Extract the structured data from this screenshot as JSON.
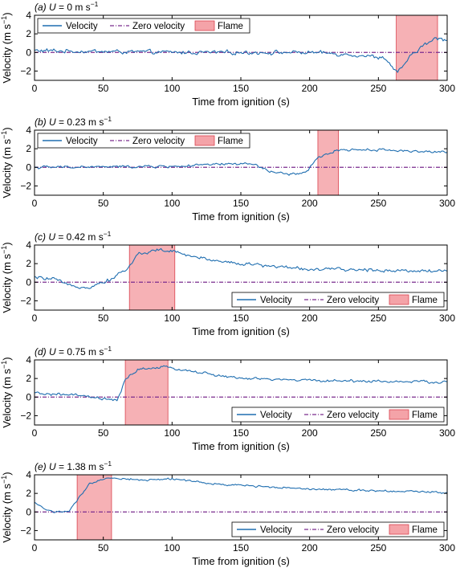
{
  "chart_data": [
    {
      "type": "line",
      "panel": "a",
      "title_prefix": "(a) ",
      "title_var": "U",
      "title_eq": " = 0 m s",
      "title_sup": "−1",
      "xlabel": "Time from ignition (s)",
      "ylabel": "Velocity (m s",
      "ylabel_sup": "−1",
      "ylabel_close": ")",
      "xlim": [
        0,
        300
      ],
      "ylim": [
        -3,
        4
      ],
      "xticks": [
        0,
        50,
        100,
        150,
        200,
        250,
        300
      ],
      "yticks": [
        -2,
        0,
        2,
        4
      ],
      "legend_position": "top-left",
      "flame_span": [
        263,
        293
      ],
      "velocity_profile": [
        [
          0,
          0.2
        ],
        [
          100,
          0.0
        ],
        [
          200,
          0.0
        ],
        [
          230,
          -0.2
        ],
        [
          255,
          -0.6
        ],
        [
          264,
          -2.3
        ],
        [
          270,
          -1.0
        ],
        [
          280,
          0.5
        ],
        [
          292,
          1.5
        ],
        [
          300,
          1.4
        ]
      ],
      "noise_amplitude": 0.3,
      "series": [
        {
          "name": "Velocity",
          "color": "#1f6eb0"
        },
        {
          "name": "Zero velocity",
          "color": "#7b2c8e",
          "value": 0
        },
        {
          "name": "Flame",
          "color": "#f4a3a8"
        }
      ]
    },
    {
      "type": "line",
      "panel": "b",
      "title_prefix": "(b) ",
      "title_var": "U",
      "title_eq": " = 0.23 m s",
      "title_sup": "−1",
      "xlabel": "Time from ignition (s)",
      "ylabel": "Velocity (m s",
      "ylabel_sup": "−1",
      "ylabel_close": ")",
      "xlim": [
        0,
        300
      ],
      "ylim": [
        -3,
        4
      ],
      "xticks": [
        0,
        50,
        100,
        150,
        200,
        250,
        300
      ],
      "yticks": [
        -2,
        0,
        2,
        4
      ],
      "legend_position": "top-left",
      "flame_span": [
        206,
        221
      ],
      "velocity_profile": [
        [
          0,
          0.0
        ],
        [
          100,
          0.1
        ],
        [
          150,
          0.4
        ],
        [
          160,
          0.3
        ],
        [
          170,
          -0.4
        ],
        [
          185,
          -0.8
        ],
        [
          198,
          -0.5
        ],
        [
          206,
          1.0
        ],
        [
          215,
          1.6
        ],
        [
          222,
          1.9
        ],
        [
          250,
          1.9
        ],
        [
          300,
          1.6
        ]
      ],
      "noise_amplitude": 0.2,
      "series": [
        {
          "name": "Velocity",
          "color": "#1f6eb0"
        },
        {
          "name": "Zero velocity",
          "color": "#7b2c8e",
          "value": 0
        },
        {
          "name": "Flame",
          "color": "#f4a3a8"
        }
      ]
    },
    {
      "type": "line",
      "panel": "c",
      "title_prefix": "(c) ",
      "title_var": "U",
      "title_eq": " = 0.42 m s",
      "title_sup": "−1",
      "xlabel": "Time from ignition (s)",
      "ylabel": "Velocity (m s",
      "ylabel_sup": "−1",
      "ylabel_close": ")",
      "xlim": [
        0,
        300
      ],
      "ylim": [
        -3,
        4
      ],
      "xticks": [
        0,
        50,
        100,
        150,
        200,
        250,
        300
      ],
      "yticks": [
        -2,
        0,
        2,
        4
      ],
      "legend_position": "bottom-right",
      "flame_span": [
        69,
        102
      ],
      "velocity_profile": [
        [
          0,
          0.5
        ],
        [
          15,
          0.3
        ],
        [
          25,
          -0.4
        ],
        [
          40,
          -0.5
        ],
        [
          55,
          0.3
        ],
        [
          68,
          1.5
        ],
        [
          75,
          3.0
        ],
        [
          90,
          3.5
        ],
        [
          100,
          3.3
        ],
        [
          120,
          2.6
        ],
        [
          150,
          2.0
        ],
        [
          200,
          1.4
        ],
        [
          250,
          1.3
        ],
        [
          300,
          1.2
        ]
      ],
      "noise_amplitude": 0.25,
      "series": [
        {
          "name": "Velocity",
          "color": "#1f6eb0"
        },
        {
          "name": "Zero velocity",
          "color": "#7b2c8e",
          "value": 0
        },
        {
          "name": "Flame",
          "color": "#f4a3a8"
        }
      ]
    },
    {
      "type": "line",
      "panel": "d",
      "title_prefix": "(d) ",
      "title_var": "U",
      "title_eq": " = 0.75 m s",
      "title_sup": "−1",
      "xlabel": "Time from ignition (s)",
      "ylabel": "Velocity (m s",
      "ylabel_sup": "−1",
      "ylabel_close": ")",
      "xlim": [
        0,
        300
      ],
      "ylim": [
        -3,
        4
      ],
      "xticks": [
        0,
        50,
        100,
        150,
        200,
        250,
        300
      ],
      "yticks": [
        -2,
        0,
        2,
        4
      ],
      "legend_position": "bottom-right",
      "flame_span": [
        66,
        97
      ],
      "velocity_profile": [
        [
          0,
          0.4
        ],
        [
          30,
          0.2
        ],
        [
          50,
          -0.2
        ],
        [
          60,
          -0.4
        ],
        [
          66,
          1.8
        ],
        [
          75,
          3.0
        ],
        [
          95,
          3.2
        ],
        [
          110,
          2.9
        ],
        [
          130,
          2.4
        ],
        [
          150,
          2.0
        ],
        [
          200,
          1.8
        ],
        [
          250,
          1.7
        ],
        [
          300,
          1.6
        ]
      ],
      "noise_amplitude": 0.2,
      "series": [
        {
          "name": "Velocity",
          "color": "#1f6eb0"
        },
        {
          "name": "Zero velocity",
          "color": "#7b2c8e",
          "value": 0
        },
        {
          "name": "Flame",
          "color": "#f4a3a8"
        }
      ]
    },
    {
      "type": "line",
      "panel": "e",
      "title_prefix": "(e) ",
      "title_var": "U",
      "title_eq": " = 1.38 m s",
      "title_sup": "−1",
      "xlabel": "Time from ignition (s)",
      "ylabel": "Velocity (m s",
      "ylabel_sup": "−1",
      "ylabel_close": ")",
      "xlim": [
        0,
        300
      ],
      "ylim": [
        -3,
        4
      ],
      "xticks": [
        0,
        50,
        100,
        150,
        200,
        250,
        300
      ],
      "yticks": [
        -2,
        0,
        2,
        4
      ],
      "legend_position": "bottom-right",
      "flame_span": [
        31,
        56
      ],
      "velocity_profile": [
        [
          0,
          1.0
        ],
        [
          8,
          0.3
        ],
        [
          15,
          0.0
        ],
        [
          25,
          0.1
        ],
        [
          31,
          1.2
        ],
        [
          40,
          3.0
        ],
        [
          55,
          3.7
        ],
        [
          80,
          3.4
        ],
        [
          100,
          3.6
        ],
        [
          130,
          3.0
        ],
        [
          200,
          2.5
        ],
        [
          250,
          2.3
        ],
        [
          300,
          2.1
        ]
      ],
      "noise_amplitude": 0.15,
      "series": [
        {
          "name": "Velocity",
          "color": "#1f6eb0"
        },
        {
          "name": "Zero velocity",
          "color": "#7b2c8e",
          "value": 0
        },
        {
          "name": "Flame",
          "color": "#f4a3a8"
        }
      ]
    }
  ]
}
